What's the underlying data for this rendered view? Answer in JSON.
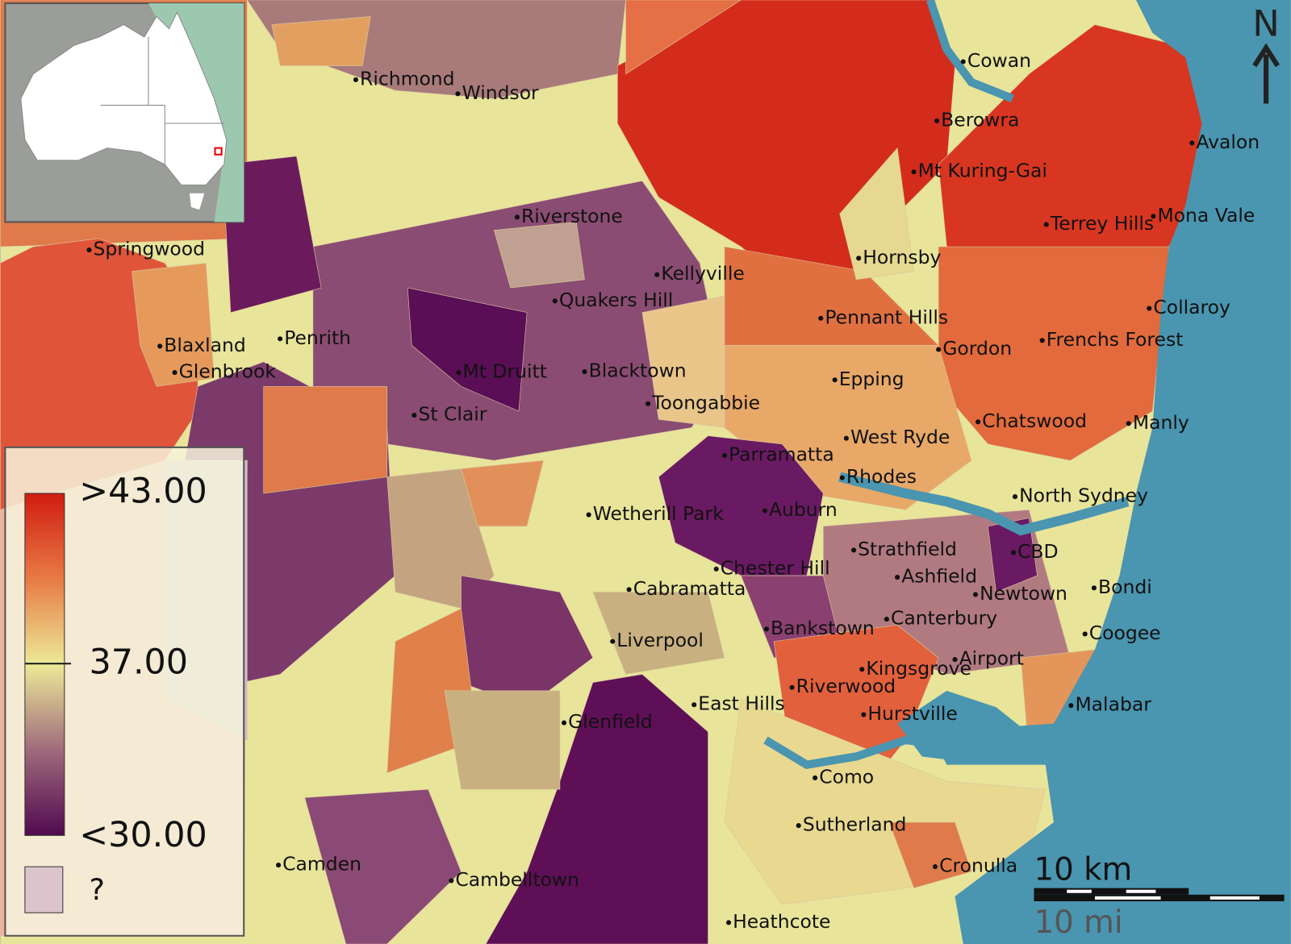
{
  "places": [
    "Richmond",
    "Windsor",
    "Riverstone",
    "Springwood",
    "Kellyville",
    "Quakers Hill",
    "Blaxland",
    "Penrith",
    "Glenbrook",
    "Mt Druitt",
    "Blacktown",
    "Toongabbie",
    "St Clair",
    "Parramatta",
    "Wetherill Park",
    "Auburn",
    "Chester Hill",
    "Cabramatta",
    "Liverpool",
    "Bankstown",
    "Glenfield",
    "East Hills",
    "Riverwood",
    "Camden",
    "Cambelltown",
    "Heathcote",
    "Como",
    "Sutherland",
    "Hurstville",
    "Kingsgrove",
    "Cronulla",
    "Cowan",
    "Berowra",
    "Mt Kuring-Gai",
    "Terrey Hills",
    "Mona Vale",
    "Avalon",
    "Hornsby",
    "Pennant Hills",
    "Gordon",
    "Frenchs Forest",
    "Collaroy",
    "Epping",
    "Chatswood",
    "Manly",
    "West Ryde",
    "Rhodes",
    "North Sydney",
    "Strathfield",
    "CBD",
    "Ashfield",
    "Newtown",
    "Bondi",
    "Canterbury",
    "Airport",
    "Coogee",
    "Malabar"
  ],
  "legend": {
    "labels": [
      ">43.00",
      "37.00",
      "<30.00"
    ],
    "missing": "?"
  },
  "scale": {
    "km": "10 km",
    "mi": "10 mi"
  },
  "north": "N"
}
